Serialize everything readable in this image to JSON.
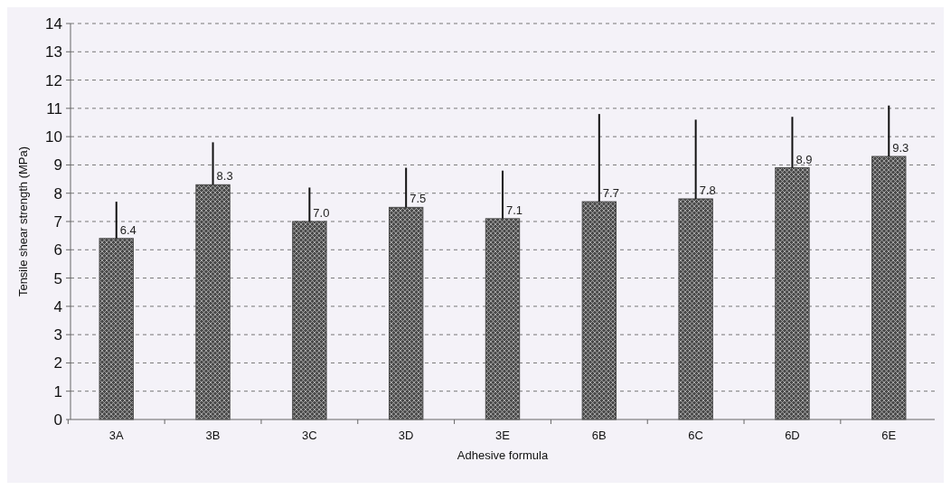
{
  "chart_data": {
    "type": "bar",
    "xlabel": "Adhesive formula",
    "ylabel": "Tensile shear strength (MPa)",
    "categories": [
      "3A",
      "3B",
      "3C",
      "3D",
      "3E",
      "6B",
      "6C",
      "6D",
      "6E"
    ],
    "values": [
      6.4,
      8.3,
      7.0,
      7.5,
      7.1,
      7.7,
      7.8,
      8.9,
      9.3
    ],
    "errors": [
      [
        6.4,
        7.7
      ],
      [
        8.3,
        9.8
      ],
      [
        7.0,
        8.2
      ],
      [
        7.5,
        8.9
      ],
      [
        7.1,
        8.8
      ],
      [
        7.7,
        10.8
      ],
      [
        7.8,
        10.6
      ],
      [
        8.9,
        10.7
      ],
      [
        9.3,
        11.1
      ]
    ],
    "value_labels": [
      "6.4",
      "8.3",
      "7.0",
      "7.5",
      "7.1",
      "7.7",
      "7.8",
      "8.9",
      "9.3"
    ],
    "color": "#4a4a4a",
    "ylim": [
      0,
      14
    ],
    "yticks": [
      0,
      1,
      2,
      3,
      4,
      5,
      6,
      7,
      8,
      9,
      10,
      11,
      12,
      13,
      14
    ],
    "grid": "y"
  }
}
